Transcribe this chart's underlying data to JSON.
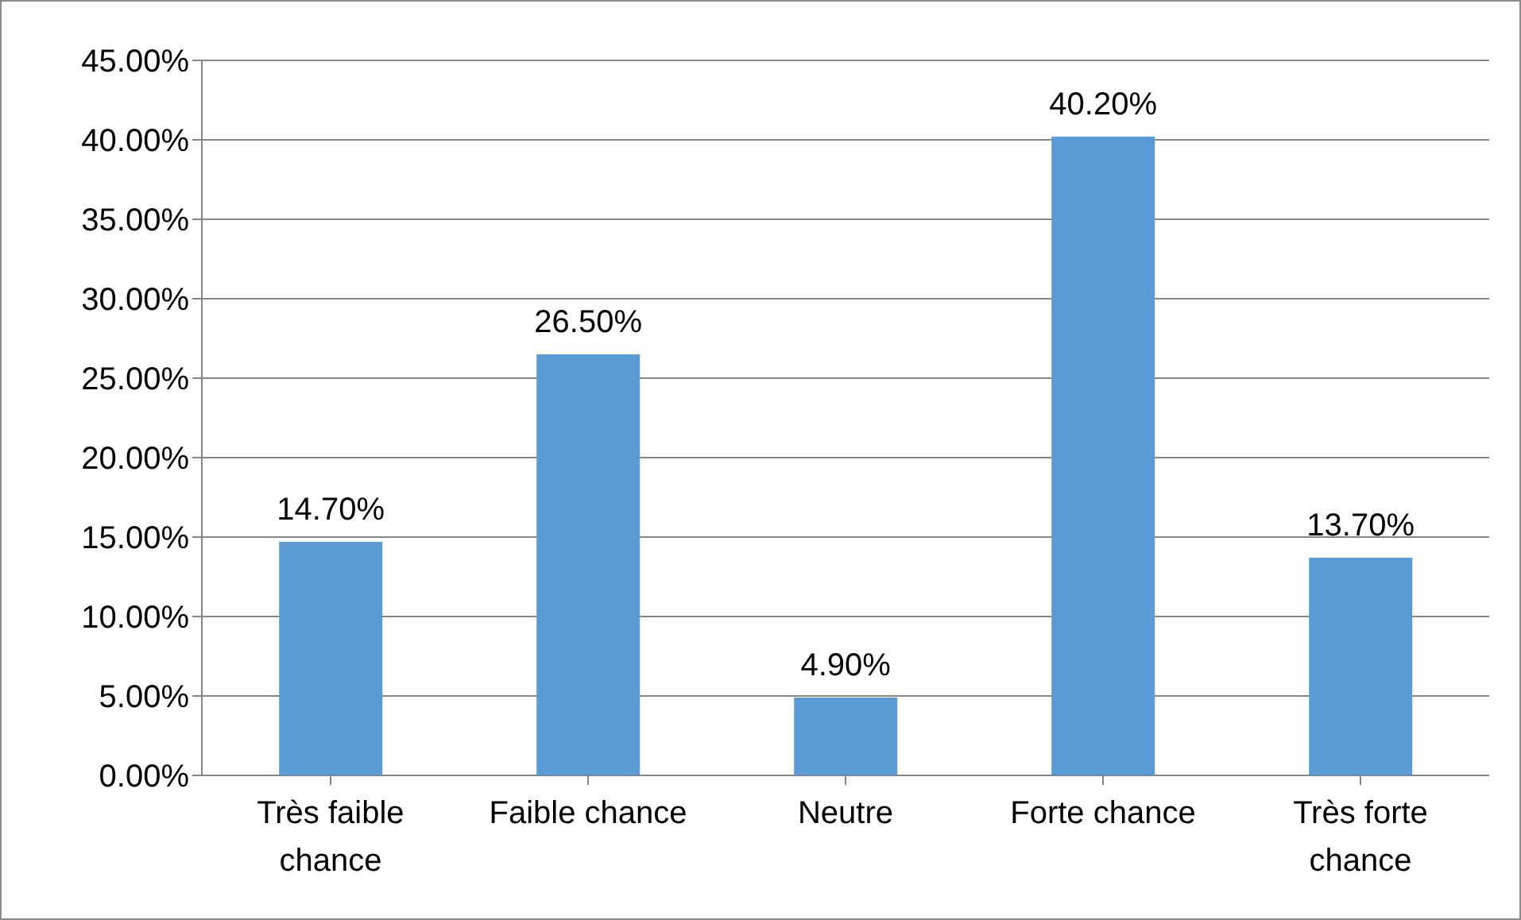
{
  "chart_data": {
    "type": "bar",
    "categories": [
      "Très faible chance",
      "Faible chance",
      "Neutre",
      "Forte chance",
      "Très forte chance"
    ],
    "values": [
      14.7,
      26.5,
      4.9,
      40.2,
      13.7
    ],
    "value_labels": [
      "14.70%",
      "26.50%",
      "4.90%",
      "40.20%",
      "13.70%"
    ],
    "color": "#5b9bd5",
    "ylim": [
      0,
      45
    ],
    "yticks": [
      {
        "value": 0,
        "label": "0.00%"
      },
      {
        "value": 5,
        "label": "5.00%"
      },
      {
        "value": 10,
        "label": "10.00%"
      },
      {
        "value": 15,
        "label": "15.00%"
      },
      {
        "value": 20,
        "label": "20.00%"
      },
      {
        "value": 25,
        "label": "25.00%"
      },
      {
        "value": 30,
        "label": "30.00%"
      },
      {
        "value": 35,
        "label": "35.00%"
      },
      {
        "value": 40,
        "label": "40.00%"
      },
      {
        "value": 45,
        "label": "45.00%"
      }
    ],
    "grid": "y",
    "legend": false
  }
}
